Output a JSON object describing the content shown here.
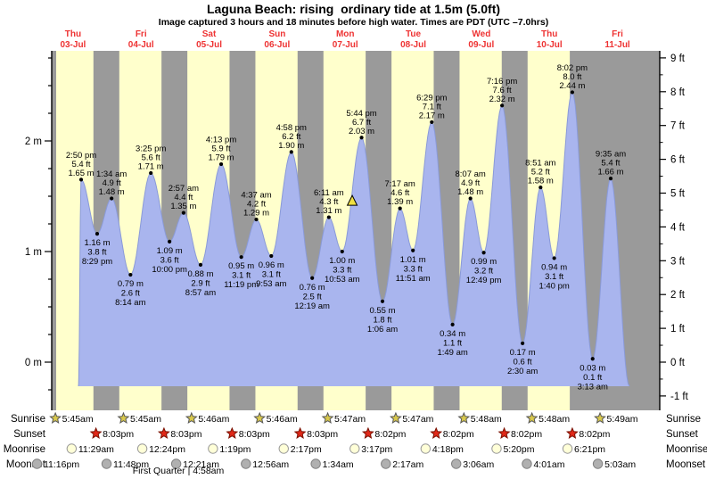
{
  "header": {
    "title": "Laguna Beach: rising  ordinary tide at 1.5m (5.0ft)",
    "subtitle": "Image captured 3 hours and 18 minutes before high water. Times are PDT (UTC –7.0hrs)"
  },
  "colors": {
    "day_band": "#ffffcc",
    "night_band": "#9a9a9a",
    "water": "#a9b5ee",
    "water_edge": "#8a9ad8",
    "date_red": "#ee3333",
    "marker_yellow": "#f0e040",
    "sunrise_star": "#d8c84c",
    "sunset_star": "#e02818",
    "moonrise_circle": "#ffffd8",
    "moonset_circle": "#b0b0b0"
  },
  "chart_data": {
    "type": "area",
    "title": "Laguna Beach: rising  ordinary tide at 1.5m (5.0ft)",
    "x_unit": "days",
    "days": [
      {
        "dow": "Thu",
        "date": "03-Jul"
      },
      {
        "dow": "Fri",
        "date": "04-Jul"
      },
      {
        "dow": "Sat",
        "date": "05-Jul"
      },
      {
        "dow": "Sun",
        "date": "06-Jul"
      },
      {
        "dow": "Mon",
        "date": "07-Jul"
      },
      {
        "dow": "Tue",
        "date": "08-Jul"
      },
      {
        "dow": "Wed",
        "date": "09-Jul"
      },
      {
        "dow": "Thu",
        "date": "10-Jul"
      },
      {
        "dow": "Fri",
        "date": "11-Jul"
      }
    ],
    "y_axis_left": {
      "unit": "m",
      "labels": [
        "0 m",
        "1 m",
        "2 m"
      ],
      "major_step_m": 1,
      "minor_step_m": 0.25
    },
    "y_axis_right": {
      "unit": "ft",
      "min": -1,
      "max": 9,
      "labels": [
        "-1 ft",
        "0 ft",
        "1 ft",
        "2 ft",
        "3 ft",
        "4 ft",
        "5 ft",
        "6 ft",
        "7 ft",
        "8 ft",
        "9 ft"
      ]
    },
    "extremes": [
      {
        "day": 0,
        "time": "2:50 pm",
        "ft": "5.4",
        "m": "1.65",
        "kind": "H"
      },
      {
        "day": 0,
        "time": "8:29 pm",
        "ft": "3.8",
        "m": "1.16",
        "kind": "L"
      },
      {
        "day": 1,
        "time": "1:34 am",
        "ft": "4.9",
        "m": "1.48",
        "kind": "H"
      },
      {
        "day": 1,
        "time": "8:14 am",
        "ft": "2.6",
        "m": "0.79",
        "kind": "L"
      },
      {
        "day": 1,
        "time": "3:25 pm",
        "ft": "5.6",
        "m": "1.71",
        "kind": "H"
      },
      {
        "day": 1,
        "time": "10:00 pm",
        "ft": "3.6",
        "m": "1.09",
        "kind": "L"
      },
      {
        "day": 2,
        "time": "2:57 am",
        "ft": "4.4",
        "m": "1.35",
        "kind": "H"
      },
      {
        "day": 2,
        "time": "8:57 am",
        "ft": "2.9",
        "m": "0.88",
        "kind": "L"
      },
      {
        "day": 2,
        "time": "4:13 pm",
        "ft": "5.9",
        "m": "1.79",
        "kind": "H"
      },
      {
        "day": 2,
        "time": "11:19 pm",
        "ft": "3.1",
        "m": "0.95",
        "kind": "L"
      },
      {
        "day": 3,
        "time": "4:37 am",
        "ft": "4.2",
        "m": "1.29",
        "kind": "H"
      },
      {
        "day": 3,
        "time": "9:53 am",
        "ft": "3.1",
        "m": "0.96",
        "kind": "L"
      },
      {
        "day": 3,
        "time": "4:58 pm",
        "ft": "6.2",
        "m": "1.90",
        "kind": "H"
      },
      {
        "day": 4,
        "time": "12:19 am",
        "ft": "2.5",
        "m": "0.76",
        "kind": "L"
      },
      {
        "day": 4,
        "time": "6:11 am",
        "ft": "4.3",
        "m": "1.31",
        "kind": "H"
      },
      {
        "day": 4,
        "time": "10:53 am",
        "ft": "3.3",
        "m": "1.00",
        "kind": "L"
      },
      {
        "day": 4,
        "time": "5:44 pm",
        "ft": "6.7",
        "m": "2.03",
        "kind": "H"
      },
      {
        "day": 5,
        "time": "1:06 am",
        "ft": "1.8",
        "m": "0.55",
        "kind": "L"
      },
      {
        "day": 5,
        "time": "7:17 am",
        "ft": "4.6",
        "m": "1.39",
        "kind": "H"
      },
      {
        "day": 5,
        "time": "11:51 am",
        "ft": "3.3",
        "m": "1.01",
        "kind": "L"
      },
      {
        "day": 5,
        "time": "6:29 pm",
        "ft": "7.1",
        "m": "2.17",
        "kind": "H"
      },
      {
        "day": 6,
        "time": "1:49 am",
        "ft": "1.1",
        "m": "0.34",
        "kind": "L"
      },
      {
        "day": 6,
        "time": "8:07 am",
        "ft": "4.9",
        "m": "1.48",
        "kind": "H"
      },
      {
        "day": 6,
        "time": "12:49 pm",
        "ft": "3.2",
        "m": "0.99",
        "kind": "L"
      },
      {
        "day": 6,
        "time": "7:16 pm",
        "ft": "7.6",
        "m": "2.32",
        "kind": "H"
      },
      {
        "day": 7,
        "time": "2:30 am",
        "ft": "0.6",
        "m": "0.17",
        "kind": "L"
      },
      {
        "day": 7,
        "time": "8:51 am",
        "ft": "5.2",
        "m": "1.58",
        "kind": "H"
      },
      {
        "day": 7,
        "time": "1:40 pm",
        "ft": "3.1",
        "m": "0.94",
        "kind": "L"
      },
      {
        "day": 7,
        "time": "8:02 pm",
        "ft": "8.0",
        "m": "2.44",
        "kind": "H"
      },
      {
        "day": 8,
        "time": "3:13 am",
        "ft": "0.1",
        "m": "0.03",
        "kind": "L"
      },
      {
        "day": 8,
        "time": "9:35 am",
        "ft": "5.4",
        "m": "1.66",
        "kind": "H"
      }
    ],
    "current_tide_marker": {
      "day": 4,
      "time": "2:26 pm"
    }
  },
  "astro": {
    "rows": [
      {
        "id": "sunrise",
        "label": "Sunrise",
        "icon": "sunrise-star",
        "events": [
          {
            "day": 0,
            "time": "5:45am"
          },
          {
            "day": 1,
            "time": "5:45am"
          },
          {
            "day": 2,
            "time": "5:46am"
          },
          {
            "day": 3,
            "time": "5:46am"
          },
          {
            "day": 4,
            "time": "5:47am"
          },
          {
            "day": 5,
            "time": "5:47am"
          },
          {
            "day": 6,
            "time": "5:48am"
          },
          {
            "day": 7,
            "time": "5:48am"
          },
          {
            "day": 8,
            "time": "5:49am"
          }
        ]
      },
      {
        "id": "sunset",
        "label": "Sunset",
        "icon": "sunset-star",
        "events": [
          {
            "day": 0,
            "time": "8:03pm"
          },
          {
            "day": 1,
            "time": "8:03pm"
          },
          {
            "day": 2,
            "time": "8:03pm"
          },
          {
            "day": 3,
            "time": "8:03pm"
          },
          {
            "day": 4,
            "time": "8:02pm"
          },
          {
            "day": 5,
            "time": "8:02pm"
          },
          {
            "day": 6,
            "time": "8:02pm"
          },
          {
            "day": 7,
            "time": "8:02pm"
          }
        ]
      },
      {
        "id": "moonrise",
        "label": "Moonrise",
        "icon": "moonrise-circle",
        "events": [
          {
            "day": 0,
            "time": "11:29am"
          },
          {
            "day": 1,
            "time": "12:24pm"
          },
          {
            "day": 2,
            "time": "1:19pm"
          },
          {
            "day": 3,
            "time": "2:17pm"
          },
          {
            "day": 4,
            "time": "3:17pm"
          },
          {
            "day": 5,
            "time": "4:18pm"
          },
          {
            "day": 6,
            "time": "5:20pm"
          },
          {
            "day": 7,
            "time": "6:21pm"
          }
        ]
      },
      {
        "id": "moonset",
        "label": "Moonset",
        "icon": "moonset-circle",
        "events": [
          {
            "day": -1,
            "time": "11:16pm"
          },
          {
            "day": 0,
            "time": "11:48pm"
          },
          {
            "day": 2,
            "time": "12:21am"
          },
          {
            "day": 3,
            "time": "12:56am"
          },
          {
            "day": 4,
            "time": "1:34am"
          },
          {
            "day": 5,
            "time": "2:17am"
          },
          {
            "day": 6,
            "time": "3:06am"
          },
          {
            "day": 7,
            "time": "4:01am"
          },
          {
            "day": 8,
            "time": "5:03am"
          }
        ]
      }
    ],
    "footnote": "First Quarter | 4:58am"
  }
}
